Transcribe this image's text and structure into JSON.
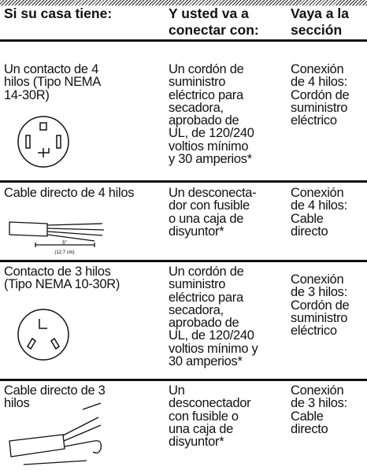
{
  "header": {
    "cells": [
      [
        "Si su casa tiene:"
      ],
      [
        "Y usted va a",
        "conectar con:"
      ],
      [
        "Vaya a la",
        "sección"
      ]
    ]
  },
  "rows": [
    {
      "cells": [
        [
          "Un contacto de 4",
          "hilos (Tipo  NEMA",
          "14-30R)"
        ],
        [
          "Un cordón de",
          "suministro",
          "eléctrico para",
          "secadora,",
          "aprobado de",
          "UL, de 120/240",
          "voltios mínimo",
          "y 30 amperios*"
        ],
        [
          "Conexión",
          "de 4 hilos:",
          "Cordón de",
          "suministro",
          "eléctrico"
        ]
      ]
    },
    {
      "cells": [
        [
          "Cable directo de 4 hilos"
        ],
        [
          "Un desconecta-",
          "dor con fusible",
          "o una caja de",
          "disyuntor*"
        ],
        [
          "Conexión",
          "de 4 hilos:",
          "Cable",
          "directo"
        ]
      ],
      "diagram_labels": [
        "5\"",
        "(12.7 cm)"
      ]
    },
    {
      "cells": [
        [
          "Contacto de 3 hilos",
          "(Tipo NEMA 10-30R)"
        ],
        [
          "Un cordón de",
          "suministro",
          "eléctrico para",
          "secadora,",
          "aprobado de",
          "UL, de 120/240",
          "voltios mínimo y",
          "30 amperios*"
        ],
        [
          "Conexión",
          "de 3 hilos:",
          "Cordón de",
          "suministro",
          "eléctrico"
        ]
      ]
    },
    {
      "cells": [
        [
          "Cable directo de 3",
          "hilos"
        ],
        [
          "Un",
          "desconectador",
          "con fusible o",
          "una caja de",
          "disyuntor*"
        ],
        [
          "Conexión",
          "de 3 hilos:",
          "Cable",
          "directo"
        ]
      ]
    }
  ]
}
